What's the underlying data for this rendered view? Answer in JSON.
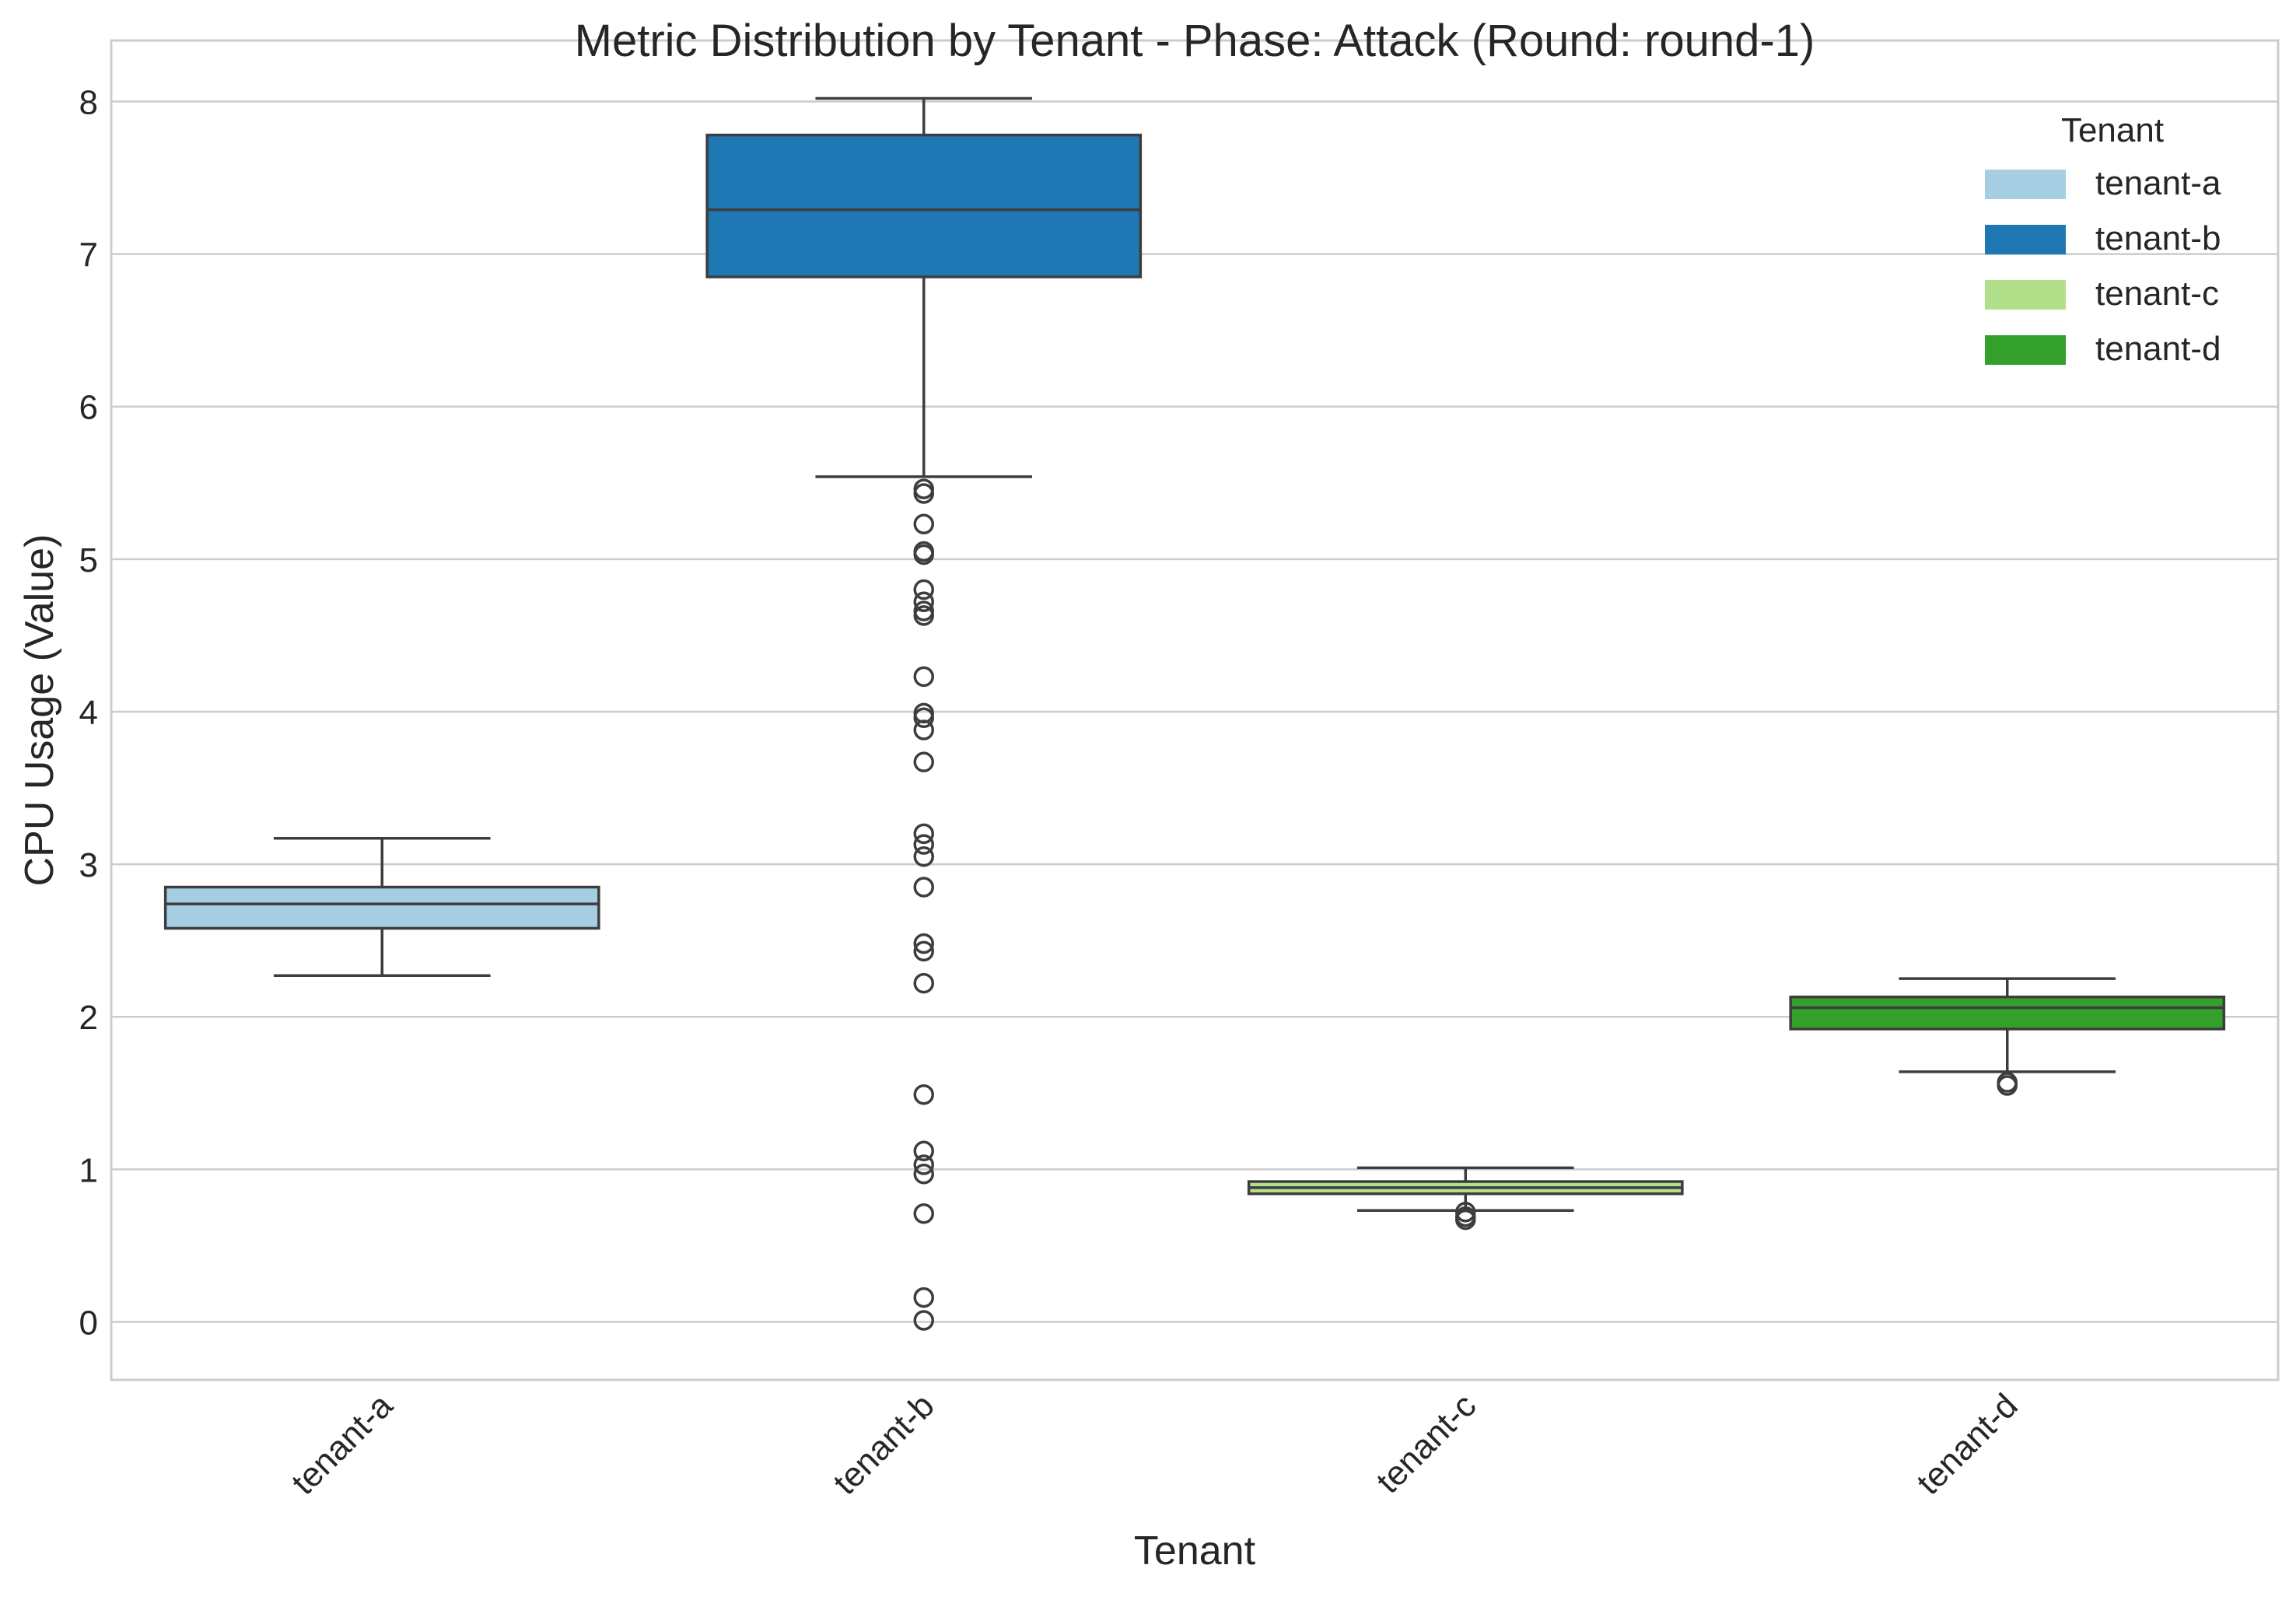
{
  "chart_data": {
    "type": "boxplot",
    "title": "Metric Distribution by Tenant - Phase: Attack (Round: round-1)",
    "xlabel": "Tenant",
    "ylabel": "CPU Usage (Value)",
    "ylim": [
      -0.38,
      8.4
    ],
    "yticks": [
      0,
      1,
      2,
      3,
      4,
      5,
      6,
      7,
      8
    ],
    "grid": true,
    "legend": {
      "title": "Tenant",
      "position": "top-right"
    },
    "categories": [
      "tenant-a",
      "tenant-b",
      "tenant-c",
      "tenant-d"
    ],
    "series": [
      {
        "name": "tenant-a",
        "color": "#a6cee3",
        "whisker_low": 2.27,
        "q1": 2.58,
        "median": 2.74,
        "q3": 2.85,
        "whisker_high": 3.17,
        "outliers": []
      },
      {
        "name": "tenant-b",
        "color": "#1f78b4",
        "whisker_low": 5.54,
        "q1": 6.85,
        "median": 7.29,
        "q3": 7.78,
        "whisker_high": 8.02,
        "outliers": [
          5.46,
          5.43,
          5.23,
          5.05,
          5.03,
          4.8,
          4.72,
          4.66,
          4.63,
          4.23,
          3.99,
          3.96,
          3.88,
          3.67,
          3.2,
          3.13,
          3.05,
          2.85,
          2.48,
          2.43,
          2.22,
          1.49,
          1.12,
          1.03,
          0.97,
          0.71,
          0.16,
          0.01
        ]
      },
      {
        "name": "tenant-c",
        "color": "#b2df8a",
        "whisker_low": 0.73,
        "q1": 0.84,
        "median": 0.88,
        "q3": 0.92,
        "whisker_high": 1.01,
        "outliers": [
          0.72,
          0.69,
          0.67
        ]
      },
      {
        "name": "tenant-d",
        "color": "#33a02c",
        "whisker_low": 1.64,
        "q1": 1.92,
        "median": 2.06,
        "q3": 2.13,
        "whisker_high": 2.25,
        "outliers": [
          1.57,
          1.55
        ]
      }
    ]
  }
}
